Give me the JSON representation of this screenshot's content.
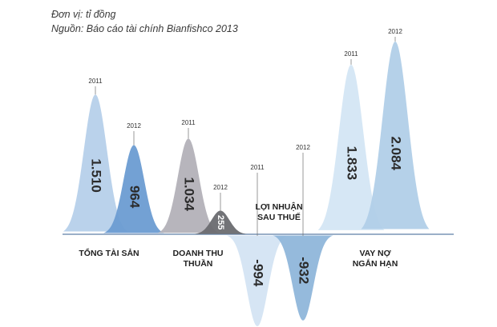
{
  "notes": {
    "unit": "Đơn vị: tỉ đồng",
    "source": "Nguồn: Báo cáo tài chính Bianfishco 2013"
  },
  "chart_data": {
    "type": "area",
    "series_years": [
      "2011",
      "2012"
    ],
    "groups": [
      {
        "category_lines": [
          "TỔNG TÀI SẢN"
        ],
        "values": [
          {
            "year": "2011",
            "value": 1510,
            "label": "1.510",
            "color": "#b6d0ea"
          },
          {
            "year": "2012",
            "value": 964,
            "label": "964",
            "color": "#6c9cd2"
          }
        ]
      },
      {
        "category_lines": [
          "DOANH THU",
          "THUẦN"
        ],
        "values": [
          {
            "year": "2011",
            "value": 1034,
            "label": "1.034",
            "color": "#b3b1b8"
          },
          {
            "year": "2012",
            "value": 255,
            "label": "255",
            "color": "#6a6b70"
          }
        ]
      },
      {
        "category_lines": [
          "LỢI NHUẬN",
          "SAU THUẾ"
        ],
        "values": [
          {
            "year": "2011",
            "value": -994,
            "label": "-994",
            "color": "#d4e4f3"
          },
          {
            "year": "2012",
            "value": -932,
            "label": "-932",
            "color": "#8fb6da"
          }
        ]
      },
      {
        "category_lines": [
          "VAY NỢ",
          "NGẮN HẠN"
        ],
        "values": [
          {
            "year": "2011",
            "value": 1833,
            "label": "1.833",
            "color": "#d4e6f4"
          },
          {
            "year": "2012",
            "value": 2084,
            "label": "2.084",
            "color": "#b1cfe8"
          }
        ]
      }
    ]
  }
}
